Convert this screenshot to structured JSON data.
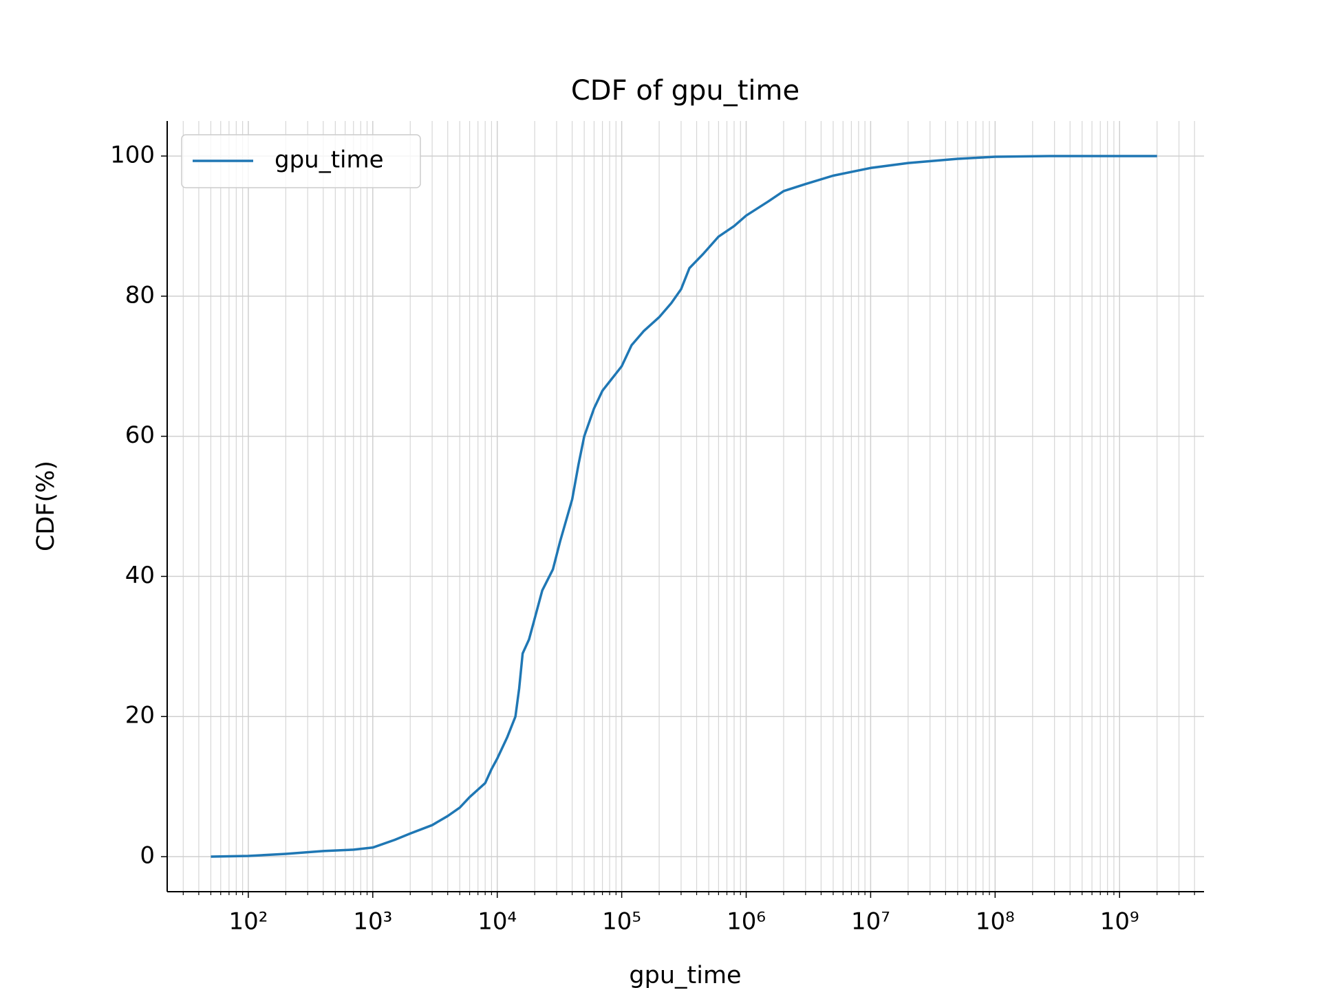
{
  "chart_data": {
    "type": "line",
    "title": "CDF of gpu_time",
    "x_label": "gpu_time",
    "y_label": "CDF(%)",
    "x_scale": "log",
    "grid": true,
    "legend_position": "upper left",
    "xlim": [
      22.3,
      4770000000
    ],
    "ylim": [
      -5,
      105
    ],
    "xticks": [
      {
        "value": 100,
        "label": "10²"
      },
      {
        "value": 1000,
        "label": "10³"
      },
      {
        "value": 10000,
        "label": "10⁴"
      },
      {
        "value": 100000,
        "label": "10⁵"
      },
      {
        "value": 1000000,
        "label": "10⁶"
      },
      {
        "value": 10000000,
        "label": "10⁷"
      },
      {
        "value": 100000000,
        "label": "10⁸"
      },
      {
        "value": 1000000000,
        "label": "10⁹"
      }
    ],
    "xminorticks": [
      30,
      40,
      50,
      60,
      70,
      80,
      90,
      200,
      300,
      400,
      500,
      600,
      700,
      800,
      900,
      2000,
      3000,
      4000,
      5000,
      6000,
      7000,
      8000,
      9000,
      20000,
      30000,
      40000,
      50000,
      60000,
      70000,
      80000,
      90000,
      200000,
      300000,
      400000,
      500000,
      600000,
      700000,
      800000,
      900000,
      2000000,
      3000000,
      4000000,
      5000000,
      6000000,
      7000000,
      8000000,
      9000000,
      20000000,
      30000000,
      40000000,
      50000000,
      60000000,
      70000000,
      80000000,
      90000000,
      200000000,
      300000000,
      400000000,
      500000000,
      600000000,
      700000000,
      800000000,
      900000000,
      2000000000,
      3000000000,
      4000000000
    ],
    "yticks": [
      0,
      20,
      40,
      60,
      80,
      100
    ],
    "x": [
      50,
      100,
      200,
      400,
      700,
      1000,
      1500,
      2000,
      3000,
      4000,
      5000,
      6000,
      8000,
      9000,
      10000,
      12000,
      14000,
      15000,
      16000,
      18000,
      20000,
      23000,
      28000,
      32000,
      40000,
      45000,
      50000,
      60000,
      70000,
      100000,
      120000,
      150000,
      200000,
      250000,
      300000,
      350000,
      450000,
      600000,
      800000,
      1000000,
      1500000,
      2000000,
      3000000,
      5000000,
      10000000,
      20000000,
      50000000,
      100000000,
      300000000,
      2000000000
    ],
    "series": [
      {
        "name": "gpu_time",
        "color": "#1f77b4",
        "values": [
          0,
          0.1,
          0.4,
          0.8,
          1.0,
          1.3,
          2.4,
          3.3,
          4.5,
          5.8,
          7.0,
          8.5,
          10.5,
          12.5,
          14,
          17,
          20,
          24,
          29,
          31,
          34,
          38,
          41,
          45,
          51,
          56,
          60,
          64,
          66.5,
          70,
          73,
          75,
          77,
          79,
          81,
          84,
          86,
          88.5,
          90,
          91.5,
          93.5,
          95,
          96,
          97.2,
          98.3,
          99,
          99.6,
          99.9,
          100,
          100
        ]
      }
    ]
  }
}
